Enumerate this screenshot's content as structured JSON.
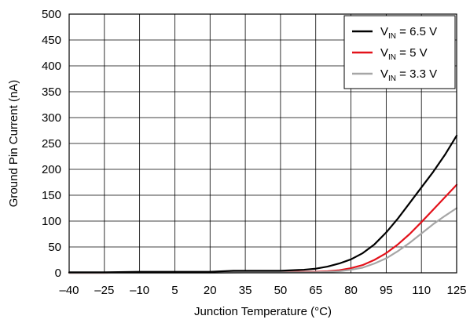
{
  "chart_data": {
    "type": "line",
    "title": "",
    "xlabel": "Junction Temperature (°C)",
    "ylabel": "Ground Pin Current (nA)",
    "xlim": [
      -40,
      125
    ],
    "ylim": [
      0,
      500
    ],
    "xticks": [
      -40,
      -25,
      -10,
      5,
      20,
      35,
      50,
      65,
      80,
      95,
      110,
      125
    ],
    "yticks": [
      0,
      50,
      100,
      150,
      200,
      250,
      300,
      350,
      400,
      450,
      500
    ],
    "xtick_labels": [
      "–40",
      "–25",
      "–10",
      "5",
      "20",
      "35",
      "50",
      "65",
      "80",
      "95",
      "110",
      "125"
    ],
    "ytick_labels": [
      "0",
      "50",
      "100",
      "150",
      "200",
      "250",
      "300",
      "350",
      "400",
      "450",
      "500"
    ],
    "grid": true,
    "legend_position": "top-right",
    "series": [
      {
        "label_main": "V",
        "label_sub": "IN",
        "label_rest": " = 6.5 V",
        "color": "#000000",
        "x": [
          -40,
          -25,
          -10,
          5,
          20,
          30,
          40,
          50,
          60,
          65,
          70,
          75,
          80,
          85,
          90,
          95,
          100,
          105,
          110,
          115,
          120,
          125
        ],
        "y": [
          1,
          1,
          2,
          2,
          2,
          4,
          4,
          4,
          6,
          8,
          12,
          18,
          26,
          38,
          55,
          78,
          105,
          135,
          165,
          195,
          228,
          265
        ]
      },
      {
        "label_main": "V",
        "label_sub": "IN",
        "label_rest": " = 5 V",
        "color": "#e3121b",
        "x": [
          -40,
          -25,
          -10,
          5,
          20,
          35,
          50,
          65,
          70,
          75,
          80,
          85,
          90,
          95,
          100,
          105,
          110,
          115,
          120,
          125
        ],
        "y": [
          0,
          0,
          1,
          1,
          1,
          2,
          2,
          2,
          3,
          5,
          9,
          15,
          25,
          38,
          55,
          75,
          98,
          122,
          146,
          170
        ]
      },
      {
        "label_main": "V",
        "label_sub": "IN",
        "label_rest": " = 3.3 V",
        "color": "#a6a6a6",
        "x": [
          -40,
          -25,
          -10,
          5,
          20,
          35,
          50,
          65,
          70,
          75,
          80,
          85,
          90,
          95,
          100,
          105,
          110,
          115,
          120,
          125
        ],
        "y": [
          0,
          0,
          0,
          0,
          0,
          1,
          1,
          1,
          2,
          3,
          6,
          10,
          18,
          28,
          42,
          58,
          76,
          94,
          110,
          125
        ]
      }
    ]
  }
}
